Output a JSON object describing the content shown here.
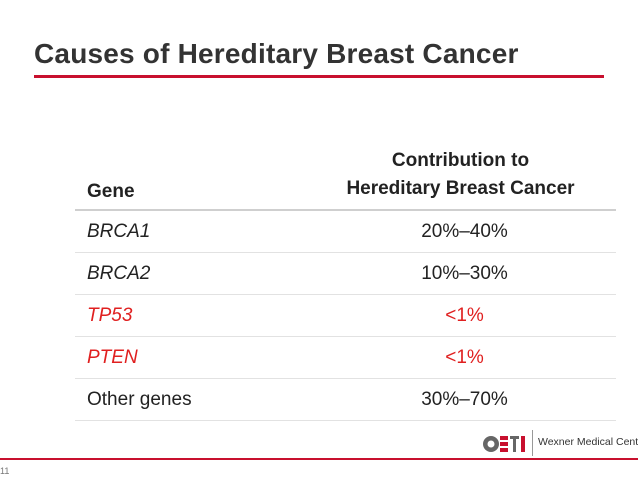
{
  "slide": {
    "title": "Causes of Hereditary Breast Cancer",
    "page_number": "11"
  },
  "table": {
    "headers": {
      "gene": "Gene",
      "contribution_line1": "Contribution to",
      "contribution_line2": "Hereditary Breast Cancer"
    },
    "rows": [
      {
        "gene": "BRCA1",
        "value": "20%–40%"
      },
      {
        "gene": "BRCA2",
        "value": "10%–30%"
      },
      {
        "gene": "TP53",
        "value": "<1%"
      },
      {
        "gene": "PTEN",
        "value": "<1%"
      },
      {
        "gene": "Other genes",
        "value": "30%–70%"
      }
    ]
  },
  "footer": {
    "logo_text": "Wexner Medical Center",
    "accent_color": "#c8102e",
    "highlight_text_color": "#e02020"
  }
}
